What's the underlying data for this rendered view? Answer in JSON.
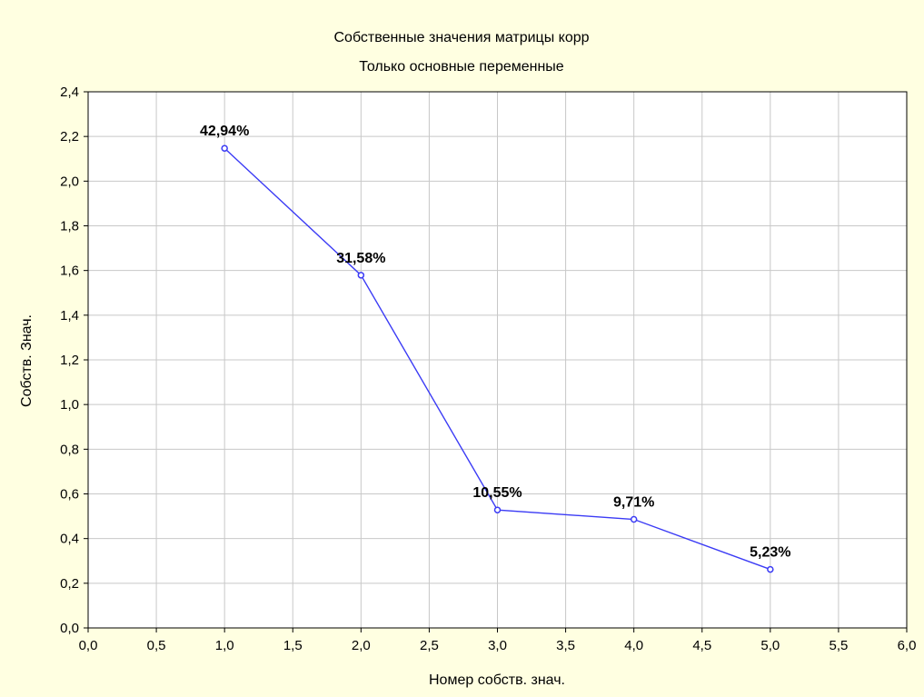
{
  "chart_data": {
    "type": "line",
    "title": "Собственные значения матрицы корр",
    "subtitle": "Только основные переменные",
    "xlabel": "Номер собств. знач.",
    "ylabel": "Собств. Знач.",
    "xlim": [
      0,
      6
    ],
    "ylim": [
      0,
      2.4
    ],
    "x_ticks": [
      0,
      0.5,
      1,
      1.5,
      2,
      2.5,
      3,
      3.5,
      4,
      4.5,
      5,
      5.5,
      6
    ],
    "y_ticks": [
      0,
      0.2,
      0.4,
      0.6,
      0.8,
      1.0,
      1.2,
      1.4,
      1.6,
      1.8,
      2.0,
      2.2,
      2.4
    ],
    "x_tick_labels": [
      "0,0",
      "0,5",
      "1,0",
      "1,5",
      "2,0",
      "2,5",
      "3,0",
      "3,5",
      "4,0",
      "4,5",
      "5,0",
      "5,5",
      "6,0"
    ],
    "y_tick_labels": [
      "0,0",
      "0,2",
      "0,4",
      "0,6",
      "0,8",
      "1,0",
      "1,2",
      "1,4",
      "1,6",
      "1,8",
      "2,0",
      "2,2",
      "2,4"
    ],
    "grid": true,
    "series": [
      {
        "x": [
          1,
          2,
          3,
          4,
          5
        ],
        "y": [
          2.147,
          1.579,
          0.528,
          0.486,
          0.262
        ],
        "labels": [
          "42,94%",
          "31,58%",
          "10,55%",
          "9,71%",
          "5,23%"
        ],
        "color": "#3b3bf5"
      }
    ],
    "background_color": "#ffffe1",
    "plot_background_color": "#ffffff",
    "grid_color": "#c8c8c8"
  }
}
